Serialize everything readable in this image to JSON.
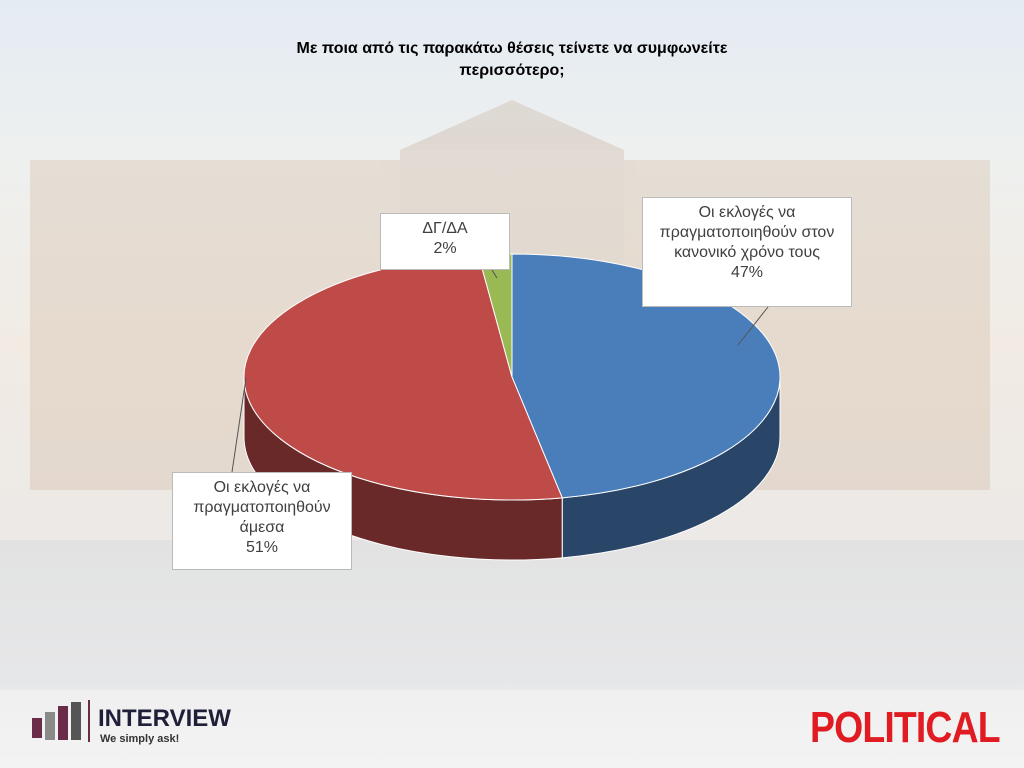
{
  "chart_data": {
    "type": "pie",
    "title": "Με ποια από τις παρακάτω θέσεις τείνετε να συμφωνείτε περισσότερο;",
    "categories": [
      "Οι εκλογές να πραγματοποιηθούν στον κανονικό χρόνο τους",
      "Οι εκλογές να πραγματοποιηθούν άμεσα",
      "ΔΓ/ΔΑ"
    ],
    "values": [
      47,
      51,
      2
    ],
    "value_labels": [
      "47%",
      "51%",
      "2%"
    ],
    "colors": [
      "#4a7ebb",
      "#be4b48",
      "#98b954"
    ]
  },
  "logos": {
    "interview": "INTERVIEW",
    "tagline": "We simply ask!",
    "political": "POLITICAL"
  }
}
